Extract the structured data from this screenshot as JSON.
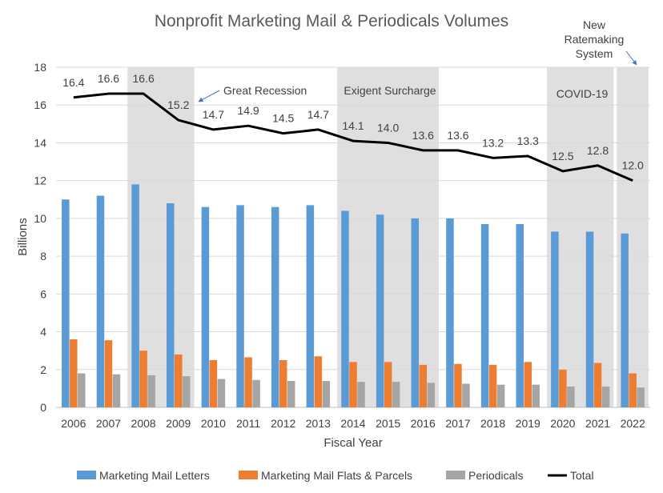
{
  "chart_data": {
    "type": "bar",
    "title": "Nonprofit Marketing Mail & Periodicals Volumes",
    "xlabel": "Fiscal Year",
    "ylabel": "Billions",
    "ylim": [
      0,
      18
    ],
    "yticks": [
      0,
      2,
      4,
      6,
      8,
      10,
      12,
      14,
      16,
      18
    ],
    "grid": true,
    "legend_position": "bottom",
    "categories": [
      "2006",
      "2007",
      "2008",
      "2009",
      "2010",
      "2011",
      "2012",
      "2013",
      "2014",
      "2015",
      "2016",
      "2017",
      "2018",
      "2019",
      "2020",
      "2021",
      "2022"
    ],
    "series": [
      {
        "name": "Marketing Mail Letters",
        "type": "bar",
        "color": "#5b9bd5",
        "values": [
          11.0,
          11.2,
          11.8,
          10.8,
          10.6,
          10.7,
          10.6,
          10.7,
          10.4,
          10.2,
          10.0,
          10.0,
          9.7,
          9.7,
          9.3,
          9.3,
          9.2
        ]
      },
      {
        "name": "Marketing Mail Flats & Parcels",
        "type": "bar",
        "color": "#ed7d31",
        "values": [
          3.6,
          3.55,
          3.0,
          2.8,
          2.5,
          2.65,
          2.5,
          2.7,
          2.4,
          2.4,
          2.25,
          2.3,
          2.25,
          2.4,
          2.0,
          2.35,
          1.8
        ]
      },
      {
        "name": "Periodicals",
        "type": "bar",
        "color": "#a5a5a5",
        "values": [
          1.8,
          1.75,
          1.7,
          1.65,
          1.5,
          1.45,
          1.4,
          1.4,
          1.35,
          1.35,
          1.3,
          1.25,
          1.2,
          1.2,
          1.1,
          1.1,
          1.05
        ]
      },
      {
        "name": "Total",
        "type": "line",
        "color": "#000000",
        "values": [
          16.4,
          16.6,
          16.6,
          15.2,
          14.7,
          14.9,
          14.5,
          14.7,
          14.1,
          14.0,
          13.6,
          13.6,
          13.2,
          13.3,
          12.5,
          12.8,
          12.0
        ],
        "labels": [
          "16.4",
          "16.6",
          "16.6",
          "15.2",
          "14.7",
          "14.9",
          "14.5",
          "14.7",
          "14.1",
          "14.0",
          "13.6",
          "13.6",
          "13.2",
          "13.3",
          "12.5",
          "12.8",
          "12.0"
        ]
      }
    ],
    "shaded_periods": [
      {
        "from": "2008",
        "to": "2009",
        "label": "Great Recession"
      },
      {
        "from": "2014",
        "to": "2016",
        "label": "Exigent Surcharge"
      },
      {
        "from": "2020",
        "to": "2021",
        "label": "COVID-19"
      },
      {
        "from": "2022",
        "to": "2022",
        "label": "New Ratemaking System"
      }
    ],
    "annotations": [
      {
        "text": "Great Recession",
        "points_to": "2009"
      },
      {
        "text": "Exigent Surcharge"
      },
      {
        "text": "COVID-19"
      },
      {
        "text_lines": [
          "New",
          "Ratemaking",
          "System"
        ],
        "points_to": "2022"
      }
    ]
  }
}
